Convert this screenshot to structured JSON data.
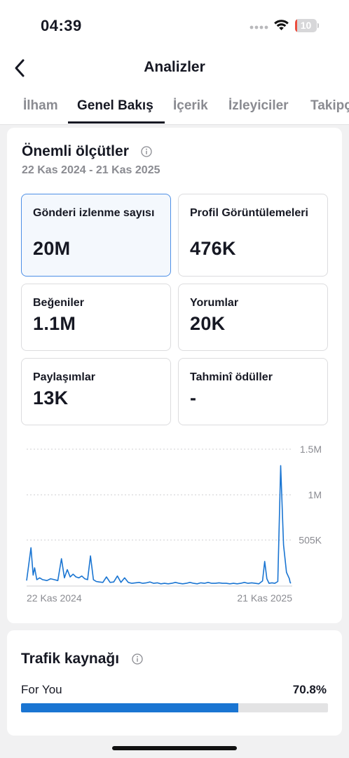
{
  "status_bar": {
    "time": "04:39",
    "battery": "10",
    "battery_level": 0.1
  },
  "header": {
    "title": "Analizler"
  },
  "tabs": [
    {
      "label": "İlham",
      "active": false
    },
    {
      "label": "Genel Bakış",
      "active": true
    },
    {
      "label": "İçerik",
      "active": false
    },
    {
      "label": "İzleyiciler",
      "active": false
    },
    {
      "label": "Takipçiler",
      "active": false
    }
  ],
  "metrics": {
    "title": "Önemli ölçütler",
    "date_range": "22 Kas 2024 - 21 Kas 2025",
    "tiles": [
      {
        "label": "Gönderi izlenme sayısı",
        "value": "20M",
        "selected": true
      },
      {
        "label": "Profil Görüntülemeleri",
        "value": "476K",
        "selected": false
      },
      {
        "label": "Beğeniler",
        "value": "1.1M",
        "selected": false
      },
      {
        "label": "Yorumlar",
        "value": "20K",
        "selected": false
      },
      {
        "label": "Paylaşımlar",
        "value": "13K",
        "selected": false
      },
      {
        "label": "Tahminî ödüller",
        "value": "-",
        "selected": false
      }
    ]
  },
  "chart_data": {
    "type": "line",
    "series_color": "#1a75d2",
    "y_ticks": [
      "1.5M",
      "1M",
      "505K"
    ],
    "y_tick_values": [
      1500000,
      1000000,
      505000
    ],
    "ylim": [
      0,
      1500000
    ],
    "x_labels": [
      "22 Kas 2024",
      "21 Kas 2025"
    ],
    "grid": true,
    "x": [
      0,
      6,
      9,
      11,
      14,
      18,
      22,
      28,
      33,
      38,
      43,
      48,
      52,
      56,
      60,
      64,
      68,
      72,
      76,
      80,
      84,
      88,
      92,
      96,
      100,
      105,
      110,
      115,
      120,
      125,
      130,
      135,
      140,
      145,
      150,
      155,
      160,
      165,
      170,
      175,
      180,
      185,
      190,
      195,
      200,
      205,
      210,
      215,
      220,
      225,
      230,
      235,
      240,
      245,
      250,
      255,
      260,
      265,
      270,
      275,
      280,
      285,
      290,
      295,
      300,
      305,
      310,
      315,
      320,
      325,
      328,
      331,
      334,
      338,
      342,
      346,
      350,
      354,
      358,
      362,
      363,
      364
    ],
    "values": [
      60000,
      420000,
      120000,
      200000,
      70000,
      90000,
      70000,
      60000,
      80000,
      70000,
      60000,
      300000,
      90000,
      180000,
      100000,
      130000,
      100000,
      90000,
      110000,
      80000,
      70000,
      330000,
      70000,
      50000,
      45000,
      40000,
      100000,
      40000,
      45000,
      110000,
      40000,
      90000,
      40000,
      30000,
      35000,
      40000,
      30000,
      35000,
      45000,
      30000,
      35000,
      25000,
      30000,
      25000,
      30000,
      40000,
      30000,
      25000,
      30000,
      40000,
      30000,
      25000,
      35000,
      30000,
      40000,
      30000,
      30000,
      35000,
      30000,
      30000,
      25000,
      30000,
      25000,
      30000,
      40000,
      30000,
      35000,
      30000,
      25000,
      55000,
      270000,
      80000,
      30000,
      35000,
      30000,
      50000,
      1320000,
      450000,
      150000,
      80000,
      40000,
      30000
    ]
  },
  "traffic": {
    "title": "Trafik kaynağı",
    "items": [
      {
        "label": "For You",
        "percent_label": "70.8%",
        "fraction": 0.708
      }
    ]
  }
}
